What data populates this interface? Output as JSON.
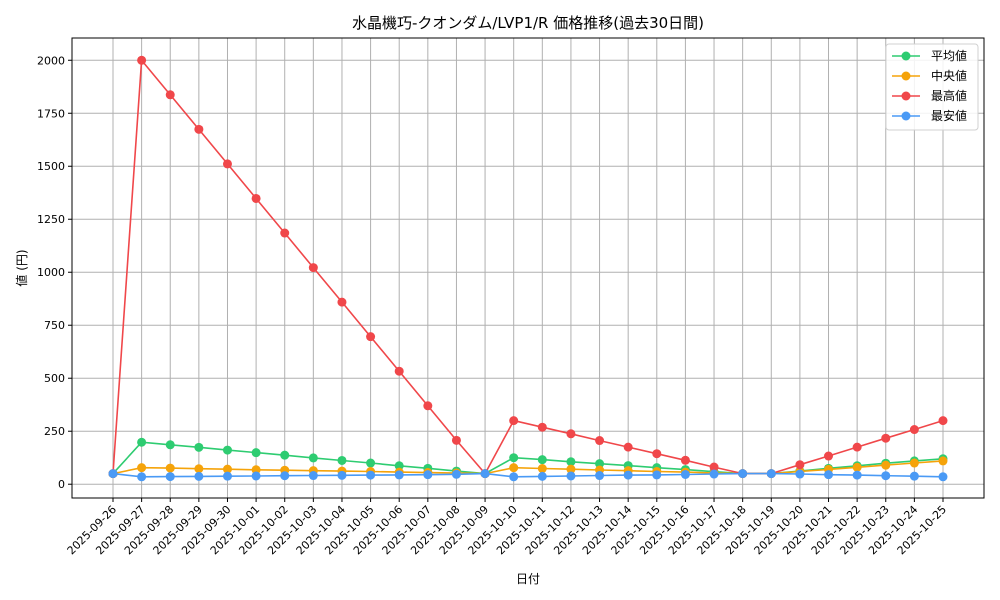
{
  "chart_data": {
    "type": "line",
    "title": "水晶機巧-クオンダム/LVP1/R 価格推移(過去30日間)",
    "xlabel": "日付",
    "ylabel": "値 (円)",
    "ylim": [
      -65,
      2105
    ],
    "yticks": [
      0,
      250,
      500,
      750,
      1000,
      1250,
      1500,
      1750,
      2000
    ],
    "grid": true,
    "legend_position": "upper right",
    "x": [
      "2025-09-26",
      "2025-09-27",
      "2025-09-28",
      "2025-09-29",
      "2025-09-30",
      "2025-10-01",
      "2025-10-02",
      "2025-10-03",
      "2025-10-04",
      "2025-10-05",
      "2025-10-06",
      "2025-10-07",
      "2025-10-08",
      "2025-10-09",
      "2025-10-10",
      "2025-10-11",
      "2025-10-12",
      "2025-10-13",
      "2025-10-14",
      "2025-10-15",
      "2025-10-16",
      "2025-10-17",
      "2025-10-18",
      "2025-10-19",
      "2025-10-20",
      "2025-10-21",
      "2025-10-22",
      "2025-10-23",
      "2025-10-24",
      "2025-10-25"
    ],
    "series": [
      {
        "name": "平均値",
        "color": "#2ecc71",
        "values": [
          50,
          198,
          186,
          174,
          161,
          149,
          137,
          124,
          112,
          100,
          87,
          75,
          62,
          50,
          125,
          116,
          106,
          97,
          88,
          78,
          69,
          59,
          50,
          50,
          62,
          75,
          87,
          99,
          110,
          120
        ]
      },
      {
        "name": "中央値",
        "color": "#f5a30a",
        "values": [
          50,
          78,
          76,
          73,
          71,
          68,
          66,
          64,
          62,
          60,
          57,
          55,
          53,
          50,
          78,
          74,
          71,
          67,
          64,
          60,
          57,
          53,
          50,
          50,
          60,
          70,
          80,
          90,
          100,
          110
        ]
      },
      {
        "name": "最高値",
        "color": "#f0474a",
        "values": [
          50,
          2000,
          1837,
          1674,
          1511,
          1348,
          1185,
          1022,
          859,
          696,
          533,
          370,
          207,
          50,
          300,
          269,
          238,
          206,
          175,
          144,
          113,
          81,
          50,
          50,
          92,
          133,
          175,
          217,
          258,
          300
        ]
      },
      {
        "name": "最安値",
        "color": "#4a9af5",
        "values": [
          50,
          35,
          36,
          37,
          38,
          39,
          40,
          41,
          42,
          43,
          44,
          45,
          47,
          50,
          35,
          37,
          39,
          41,
          43,
          44,
          46,
          48,
          50,
          50,
          48,
          45,
          43,
          40,
          38,
          35
        ]
      }
    ]
  }
}
